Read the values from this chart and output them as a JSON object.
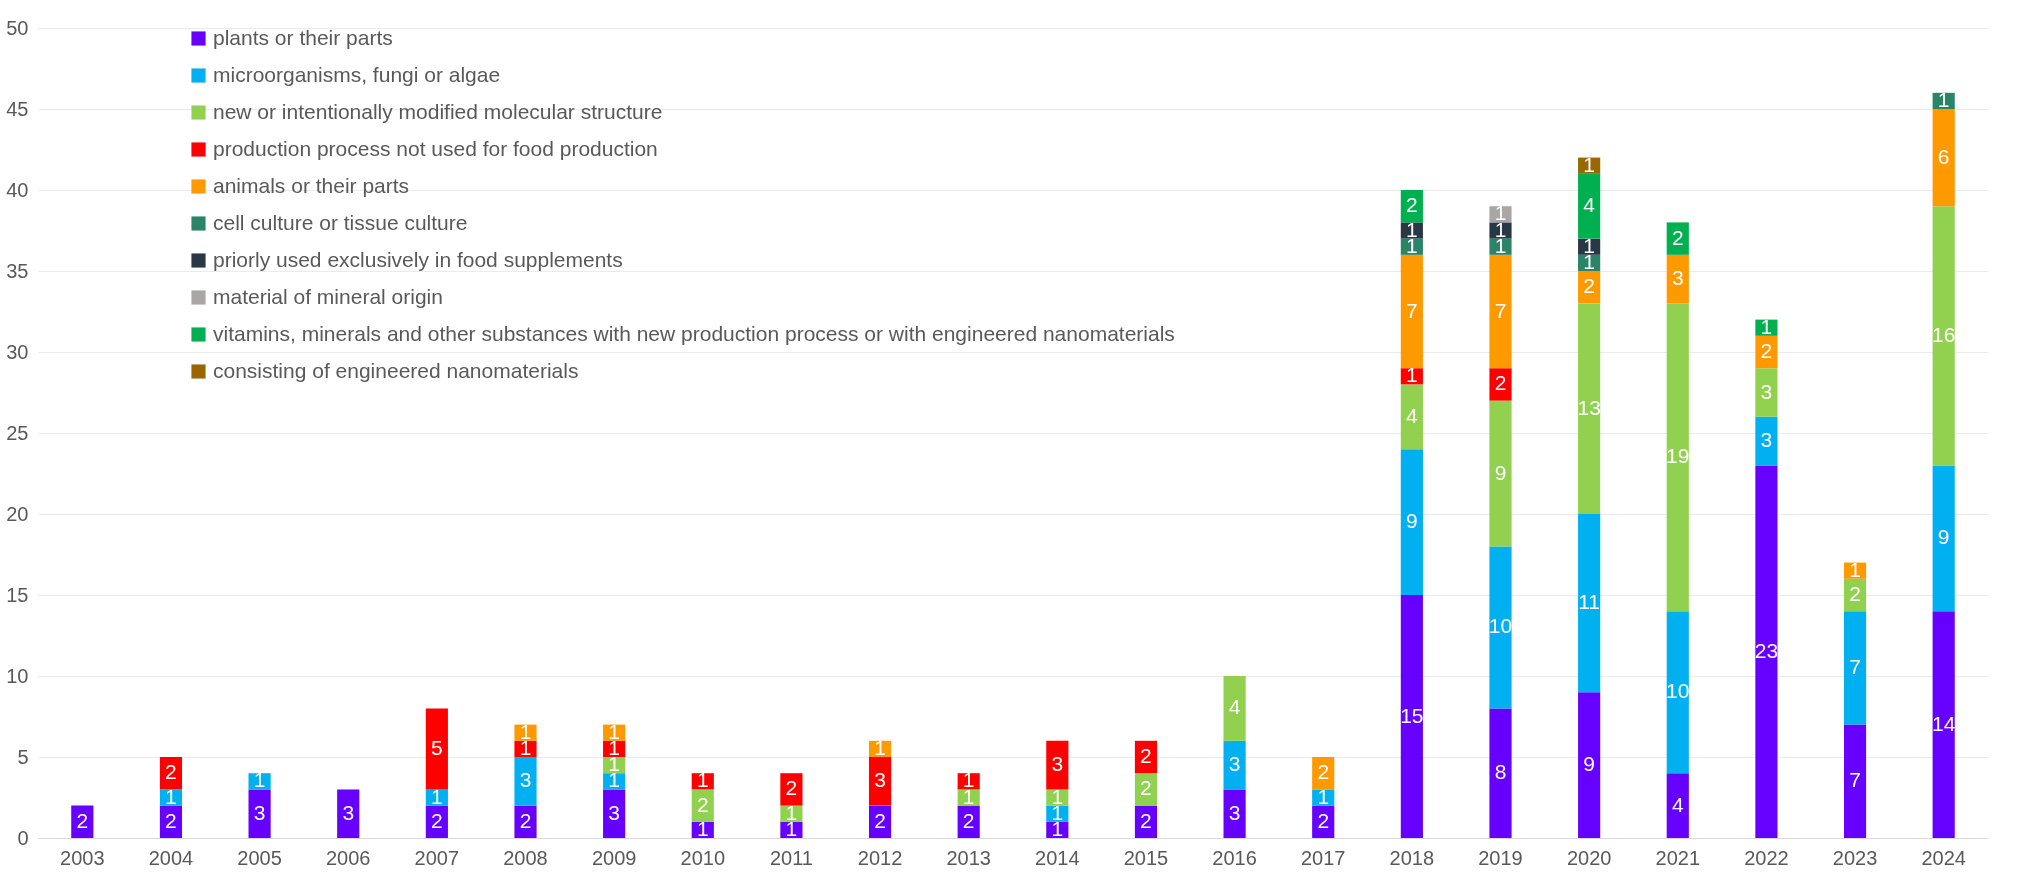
{
  "chart_data": {
    "type": "bar",
    "stacked": true,
    "data_labels": true,
    "grid": "y",
    "legend": "top left",
    "categories": [
      "2003",
      "2004",
      "2005",
      "2006",
      "2007",
      "2008",
      "2009",
      "2010",
      "2011",
      "2012",
      "2013",
      "2014",
      "2015",
      "2016",
      "2017",
      "2018",
      "2019",
      "2020",
      "2021",
      "2022",
      "2023",
      "2024"
    ],
    "ylim": [
      0,
      50
    ],
    "yticks": [
      0,
      5,
      10,
      15,
      20,
      25,
      30,
      35,
      40,
      45,
      50
    ],
    "series": [
      {
        "name": "plants or their parts",
        "color": "#6600ff",
        "values": [
          2,
          2,
          3,
          3,
          2,
          2,
          3,
          1,
          1,
          2,
          2,
          1,
          2,
          3,
          2,
          15,
          8,
          9,
          4,
          23,
          7,
          14
        ]
      },
      {
        "name": "microorganisms, fungi or algae",
        "color": "#00b0f0",
        "values": [
          null,
          1,
          1,
          null,
          1,
          3,
          1,
          null,
          null,
          null,
          null,
          1,
          null,
          3,
          1,
          9,
          10,
          11,
          10,
          3,
          7,
          9
        ]
      },
      {
        "name": "new or intentionally modified molecular structure",
        "color": "#92d050",
        "values": [
          null,
          null,
          null,
          null,
          null,
          null,
          1,
          2,
          1,
          null,
          1,
          1,
          2,
          4,
          null,
          4,
          9,
          13,
          19,
          3,
          2,
          16
        ]
      },
      {
        "name": "production process not used for food production",
        "color": "#ff0000",
        "values": [
          null,
          2,
          null,
          null,
          5,
          1,
          1,
          1,
          2,
          3,
          1,
          3,
          2,
          null,
          null,
          1,
          2,
          null,
          null,
          null,
          null,
          null
        ]
      },
      {
        "name": "animals or their parts",
        "color": "#ff9900",
        "values": [
          null,
          null,
          null,
          null,
          null,
          1,
          1,
          null,
          null,
          1,
          null,
          null,
          null,
          null,
          2,
          7,
          7,
          2,
          3,
          2,
          1,
          6
        ]
      },
      {
        "name": "cell culture or tissue culture",
        "color": "#2a8568",
        "values": [
          null,
          null,
          null,
          null,
          null,
          null,
          null,
          null,
          null,
          null,
          null,
          null,
          null,
          null,
          null,
          1,
          1,
          1,
          null,
          null,
          null,
          1
        ]
      },
      {
        "name": "priorly used exclusively in food supplements",
        "color": "#283845",
        "values": [
          null,
          null,
          null,
          null,
          null,
          null,
          null,
          null,
          null,
          null,
          null,
          null,
          null,
          null,
          null,
          1,
          1,
          1,
          null,
          null,
          null,
          null
        ]
      },
      {
        "name": "material of mineral origin",
        "color": "#aaa6a6",
        "values": [
          null,
          null,
          null,
          null,
          null,
          null,
          null,
          null,
          null,
          null,
          null,
          null,
          null,
          null,
          null,
          null,
          1,
          null,
          null,
          null,
          null,
          null
        ]
      },
      {
        "name": "vitamins, minerals and other substances with new production process or with engineered nanomaterials",
        "color": "#00b050",
        "values": [
          null,
          null,
          null,
          null,
          null,
          null,
          null,
          null,
          null,
          null,
          null,
          null,
          null,
          null,
          null,
          2,
          null,
          4,
          2,
          1,
          null,
          null
        ]
      },
      {
        "name": "consisting of engineered nanomaterials",
        "color": "#996600",
        "values": [
          null,
          null,
          null,
          null,
          null,
          null,
          null,
          null,
          null,
          null,
          null,
          null,
          null,
          null,
          null,
          null,
          null,
          1,
          null,
          null,
          null,
          null
        ]
      }
    ]
  }
}
